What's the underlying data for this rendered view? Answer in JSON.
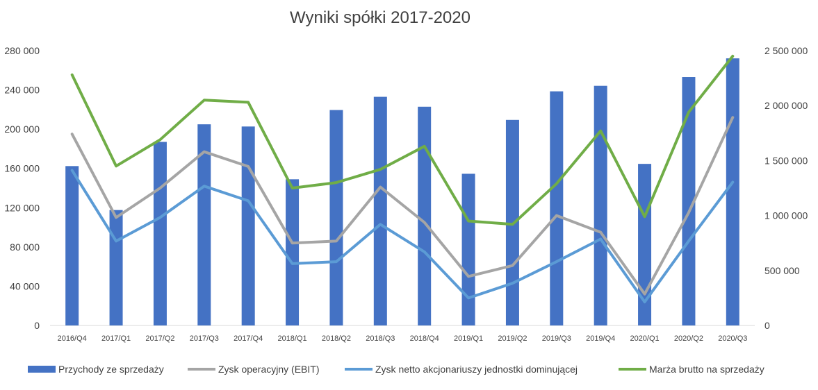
{
  "chart_data": {
    "type": "bar",
    "title": "Wyniki spółki 2017-2020",
    "categories": [
      "2016/Q4",
      "2017/Q1",
      "2017/Q2",
      "2017/Q3",
      "2017/Q4",
      "2018/Q1",
      "2018/Q2",
      "2018/Q3",
      "2018/Q4",
      "2019/Q1",
      "2019/Q2",
      "2019/Q3",
      "2019/Q4",
      "2020/Q1",
      "2020/Q2",
      "2020/Q3"
    ],
    "left_axis": {
      "ylim": [
        0,
        280000
      ],
      "ticks": [
        0,
        40000,
        80000,
        120000,
        160000,
        200000,
        240000,
        280000
      ],
      "tick_labels": [
        "0",
        "40 000",
        "80 000",
        "120 000",
        "160 000",
        "200 000",
        "240 000",
        "280 000"
      ]
    },
    "right_axis": {
      "ylim": [
        0,
        2500000
      ],
      "ticks": [
        0,
        500000,
        1000000,
        1500000,
        2000000,
        2500000
      ],
      "tick_labels": [
        "0",
        "500 000",
        "1 000 000",
        "1 500 000",
        "2 000 000",
        "2 500 000"
      ]
    },
    "grid": false,
    "legend_position": "bottom",
    "series": [
      {
        "name": "Przychody ze sprzedaży",
        "type": "bar",
        "axis": "right",
        "color": "#4472C4",
        "values": [
          1450000,
          1050000,
          1670000,
          1830000,
          1810000,
          1330000,
          1960000,
          2080000,
          1990000,
          1380000,
          1870000,
          2130000,
          2180000,
          1470000,
          2260000,
          2430000
        ]
      },
      {
        "name": "Zysk operacyjny (EBIT)",
        "type": "line",
        "axis": "left",
        "color": "#A5A5A5",
        "values": [
          195000,
          110000,
          140000,
          177000,
          162000,
          84000,
          86000,
          141000,
          105000,
          50000,
          61000,
          112000,
          95000,
          32000,
          115000,
          212000
        ]
      },
      {
        "name": "Zysk netto akcjonariuszy jednostki dominującej",
        "type": "line",
        "axis": "left",
        "color": "#5B9BD5",
        "values": [
          158000,
          86000,
          110000,
          142000,
          127000,
          63000,
          65000,
          103000,
          75000,
          28000,
          43000,
          65000,
          88000,
          24000,
          86000,
          146000
        ]
      },
      {
        "name": "Marża brutto na sprzedaży",
        "type": "line",
        "axis": "right",
        "color": "#70AD47",
        "values": [
          2280000,
          1450000,
          1690000,
          2050000,
          2030000,
          1250000,
          1300000,
          1420000,
          1630000,
          950000,
          920000,
          1290000,
          1770000,
          990000,
          1940000,
          2450000
        ]
      }
    ]
  }
}
